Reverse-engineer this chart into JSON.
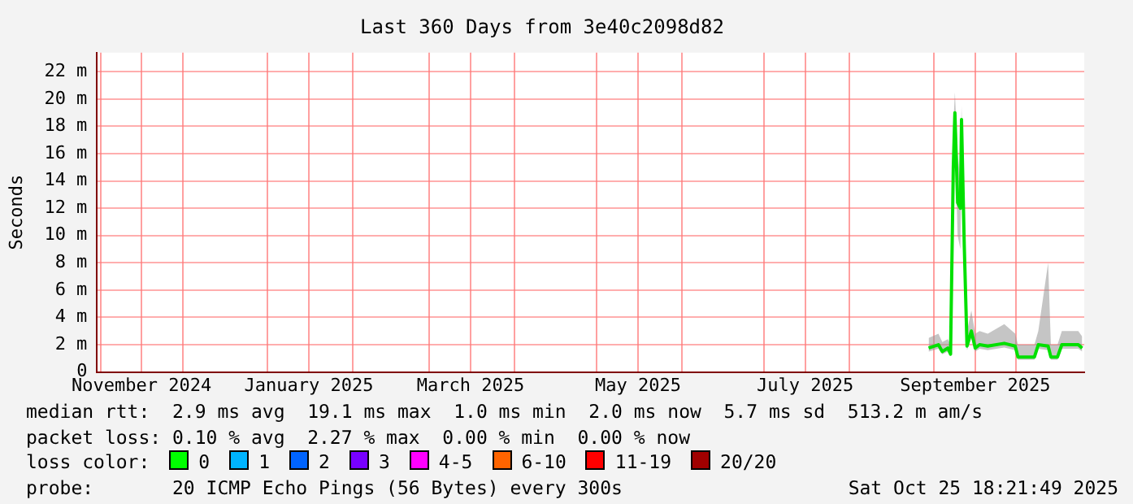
{
  "chart_data": {
    "type": "line",
    "title": "Last 360 Days from 3e40c2098d82",
    "ylabel": "Seconds",
    "x": [
      "2025-08-30",
      "2025-09-02T14:00",
      "2025-09-04",
      "2025-09-06",
      "2025-09-07",
      "2025-09-08",
      "2025-09-08T14:00",
      "2025-09-09T14:00",
      "2025-09-10T14:00",
      "2025-09-11",
      "2025-09-12",
      "2025-09-13",
      "2025-09-14T14:00",
      "2025-09-16",
      "2025-09-17T14:00",
      "2025-09-20T14:00",
      "2025-09-26T14:00",
      "2025-09-30T14:00",
      "2025-10-01T14:00",
      "2025-10-07T14:00",
      "2025-10-09",
      "2025-10-12T14:00",
      "2025-10-13T14:00",
      "2025-10-16",
      "2025-10-17T14:00",
      "2025-10-23T14:00",
      "2025-10-25"
    ],
    "series": [
      {
        "color": "#00e000",
        "values": [
          1.75,
          2.0,
          1.5,
          1.75,
          1.3,
          15.0,
          19.0,
          12.4,
          12.0,
          18.5,
          9.3,
          1.9,
          3.0,
          1.75,
          2.0,
          1.9,
          2.1,
          1.9,
          1.1,
          1.1,
          2.0,
          1.9,
          1.1,
          1.1,
          2.0,
          2.0,
          1.75
        ],
        "lower": [
          1.5,
          1.7,
          1.3,
          1.5,
          1.2,
          12.0,
          17.0,
          10.0,
          9.0,
          15.0,
          7.0,
          1.6,
          2.5,
          1.5,
          1.7,
          1.6,
          1.8,
          1.6,
          0.9,
          0.9,
          1.7,
          1.6,
          0.9,
          0.9,
          1.7,
          1.7,
          1.5
        ],
        "upper": [
          2.5,
          2.8,
          2.2,
          2.4,
          2.0,
          18.0,
          20.5,
          16.0,
          14.0,
          19.5,
          11.0,
          3.0,
          4.5,
          2.8,
          3.0,
          2.8,
          3.5,
          2.8,
          2.0,
          2.0,
          3.0,
          8.0,
          2.0,
          2.0,
          3.0,
          3.0,
          2.6
        ]
      }
    ],
    "xlim": [
      "2024-10-30T18:00",
      "2025-10-25T18:00"
    ],
    "xticks": [
      {
        "value": "2024-11-01",
        "label": null
      },
      {
        "value": "2024-11-16",
        "label": "November 2024"
      },
      {
        "value": "2024-12-01",
        "label": null
      },
      {
        "value": "2025-01-01",
        "label": null
      },
      {
        "value": "2025-01-16",
        "label": "January 2025"
      },
      {
        "value": "2025-02-01",
        "label": null
      },
      {
        "value": "2025-03-01",
        "label": null
      },
      {
        "value": "2025-03-16",
        "label": "March 2025"
      },
      {
        "value": "2025-04-01",
        "label": null
      },
      {
        "value": "2025-05-01",
        "label": null
      },
      {
        "value": "2025-05-16",
        "label": "May 2025"
      },
      {
        "value": "2025-06-01",
        "label": null
      },
      {
        "value": "2025-07-01",
        "label": null
      },
      {
        "value": "2025-07-16",
        "label": "July 2025"
      },
      {
        "value": "2025-08-01",
        "label": null
      },
      {
        "value": "2025-09-01",
        "label": null
      },
      {
        "value": "2025-09-16",
        "label": "September 2025"
      },
      {
        "value": "2025-10-01",
        "label": null
      }
    ],
    "ylim": [
      0,
      23.4
    ],
    "yticks": [
      0,
      {
        "value": 2,
        "label": "2 m"
      },
      {
        "value": 4,
        "label": "4 m"
      },
      {
        "value": 6,
        "label": "6 m"
      },
      {
        "value": 8,
        "label": "8 m"
      },
      {
        "value": 10,
        "label": "10 m"
      },
      {
        "value": 12,
        "label": "12 m"
      },
      {
        "value": 14,
        "label": "14 m"
      },
      {
        "value": 16,
        "label": "16 m"
      },
      {
        "value": 18,
        "label": "18 m"
      },
      {
        "value": 20,
        "label": "20 m"
      },
      {
        "value": 22,
        "label": "22 m"
      }
    ],
    "grid": true,
    "legend": false,
    "marker": "none",
    "line_style": "solid",
    "annotations": [
      "median rtt:  2.9 ms avg  19.1 ms max  1.0 ms min  2.0 ms now  5.7 ms sd  513.2 m am/s",
      "packet loss: 0.10 % avg  2.27 % max  0.00 % min  0.00 % now",
      "loss color:",
      "0",
      "1",
      "2",
      "3",
      "4-5",
      "6-10",
      "11-19",
      "20/20",
      "probe:       20 ICMP Echo Pings (56 Bytes) every 300s",
      "Sat Oct 25 18:21:49 2025"
    ]
  }
}
